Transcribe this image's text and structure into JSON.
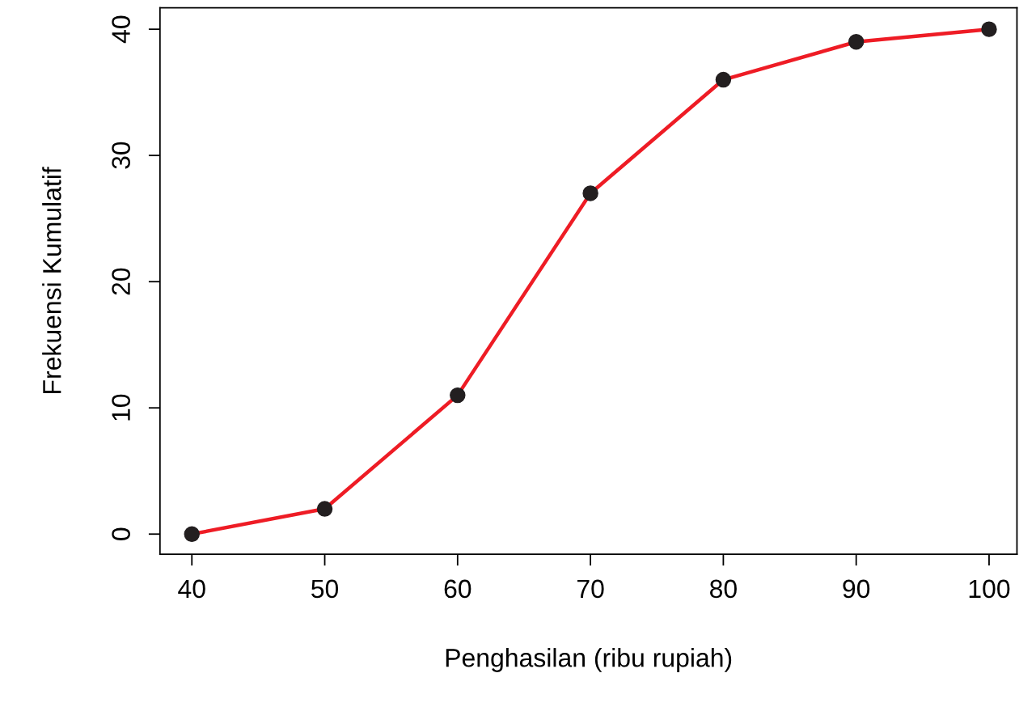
{
  "chart_data": {
    "type": "line",
    "xlabel": "Penghasilan (ribu rupiah)",
    "ylabel": "Frekuensi Kumulatif",
    "x": [
      40,
      50,
      60,
      70,
      80,
      90,
      100
    ],
    "series": [
      {
        "color": "#ee1c25",
        "values": [
          0,
          2,
          11,
          27,
          36,
          39,
          40
        ]
      }
    ],
    "marker": "circle",
    "line_style": "solid",
    "xlim": [
      37.6,
      102.1
    ],
    "ylim": [
      -1.6,
      41.7
    ],
    "xticks": [
      40,
      50,
      60,
      70,
      80,
      90,
      100
    ],
    "yticks": [
      0,
      10,
      20,
      30,
      40
    ],
    "grid": false,
    "legend": false
  }
}
